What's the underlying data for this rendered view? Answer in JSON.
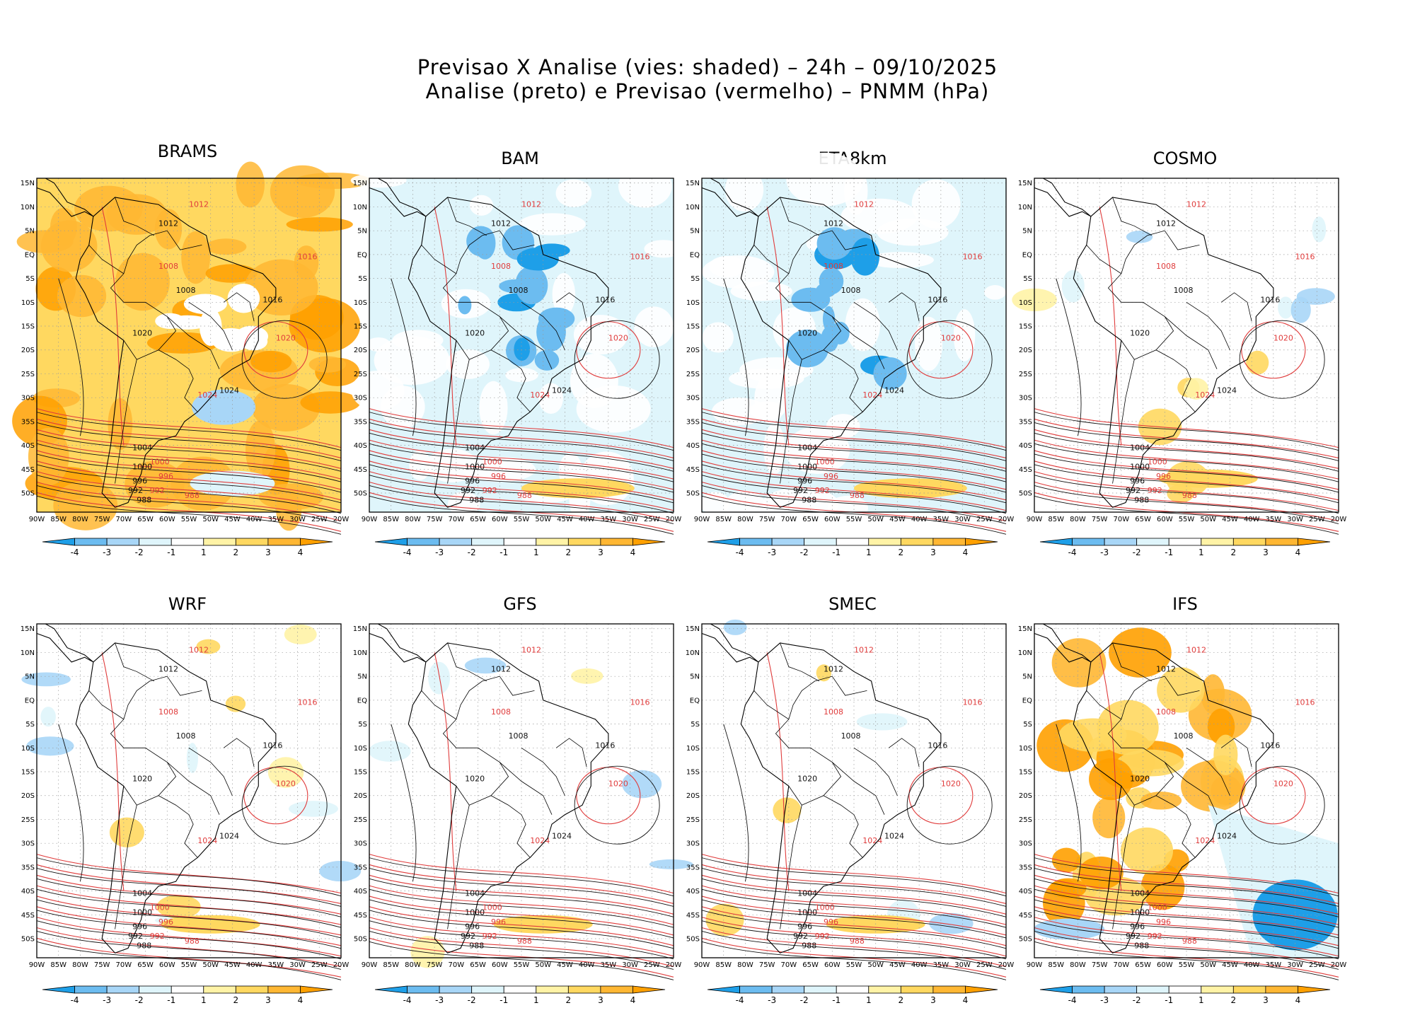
{
  "header": {
    "line1": "Previsao X Analise (vies: shaded) – 24h – 09/10/2025",
    "line2": "Analise (preto) e Previsao (vermelho) – PNMM (hPa)"
  },
  "panels": [
    {
      "name": "BRAMS",
      "bias": "warm",
      "intensity": 0.85
    },
    {
      "name": "BAM",
      "bias": "cool",
      "intensity": 0.55
    },
    {
      "name": "ETA8km",
      "bias": "cool",
      "intensity": 0.65
    },
    {
      "name": "COSMO",
      "bias": "mixed",
      "intensity": 0.35
    },
    {
      "name": "WRF",
      "bias": "mixed",
      "intensity": 0.35
    },
    {
      "name": "GFS",
      "bias": "light",
      "intensity": 0.2
    },
    {
      "name": "SMEC",
      "bias": "light",
      "intensity": 0.2
    },
    {
      "name": "IFS",
      "bias": "warm-cold-se",
      "intensity": 0.8
    }
  ],
  "lat_labels": [
    "15N",
    "10N",
    "5N",
    "EQ",
    "5S",
    "10S",
    "15S",
    "20S",
    "25S",
    "30S",
    "35S",
    "40S",
    "45S",
    "50S"
  ],
  "lon_labels": [
    "90W",
    "85W",
    "80W",
    "75W",
    "70W",
    "65W",
    "60W",
    "55W",
    "50W",
    "45W",
    "40W",
    "35W",
    "30W",
    "25W",
    "20W"
  ],
  "colorbar": {
    "labels": [
      "-4",
      "-3",
      "-2",
      "-1",
      "1",
      "2",
      "3",
      "4"
    ],
    "colors": [
      "#1e9fe8",
      "#6cbcf0",
      "#a8d6f7",
      "#dff5fb",
      "#ffffff",
      "#fff3a6",
      "#ffd860",
      "#ffb733",
      "#ffa000"
    ]
  },
  "contour_labels": {
    "analysis": [
      "1012",
      "1016",
      "1008",
      "1020",
      "1024",
      "1004",
      "1000",
      "996",
      "992",
      "988"
    ],
    "forecast": [
      "1012",
      "1016",
      "1008",
      "1020",
      "1024",
      "1000",
      "996",
      "992",
      "988"
    ]
  },
  "colors": {
    "analysis_contour": "#111111",
    "forecast_contour": "#e03c3c",
    "coast": "#000000"
  }
}
